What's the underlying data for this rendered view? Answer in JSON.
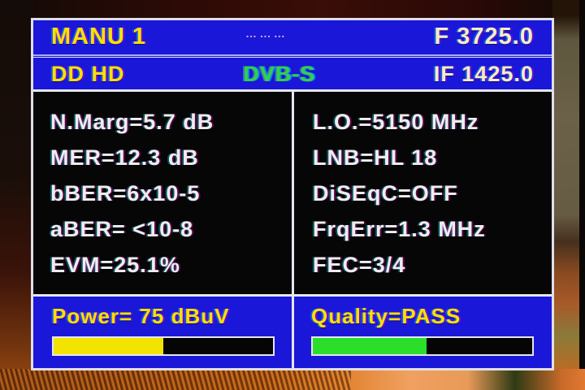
{
  "colors": {
    "panel_blue": "#1a17d8",
    "osd_yellow": "#ffdf00",
    "value_cream": "#f4ecc4",
    "dvbs_green": "#2fd24a",
    "measurement_white": "#ededed",
    "power_bar_fill": "#f2e400",
    "quality_bar_fill": "#2ade2a"
  },
  "header": {
    "title": "MANU 1",
    "signal_marks": "▪▪▪ ▪▪▪ ▪▪▪",
    "frequency": "F 3725.0"
  },
  "subheader": {
    "channel": "DD HD",
    "standard": "DVB-S",
    "if_frequency": "IF 1425.0"
  },
  "measurements": {
    "left": [
      "N.Marg=5.7 dB",
      "MER=12.3 dB",
      "bBER=6x10-5",
      "aBER= <10-8",
      "EVM=25.1%"
    ],
    "right": [
      "L.O.=5150 MHz",
      "LNB=HL 18",
      "DiSEqC=OFF",
      "FrqErr=1.3 MHz",
      "FEC=3/4"
    ]
  },
  "power": {
    "label": "Power= 75 dBuV",
    "percent": 50
  },
  "quality": {
    "label": "Quality=PASS",
    "percent": 52
  }
}
